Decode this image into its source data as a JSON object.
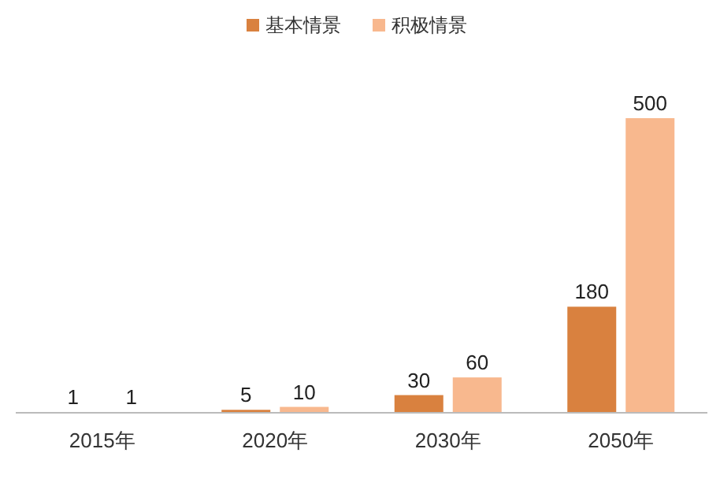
{
  "chart_data": {
    "type": "bar",
    "categories": [
      "2015年",
      "2020年",
      "2030年",
      "2050年"
    ],
    "series": [
      {
        "name": "基本情景",
        "color": "#d9813f",
        "values": [
          1,
          5,
          30,
          180
        ]
      },
      {
        "name": "积极情景",
        "color": "#f8b88e",
        "values": [
          1,
          10,
          60,
          500
        ]
      }
    ],
    "data_labels": true,
    "legend": "top",
    "grid": false
  }
}
